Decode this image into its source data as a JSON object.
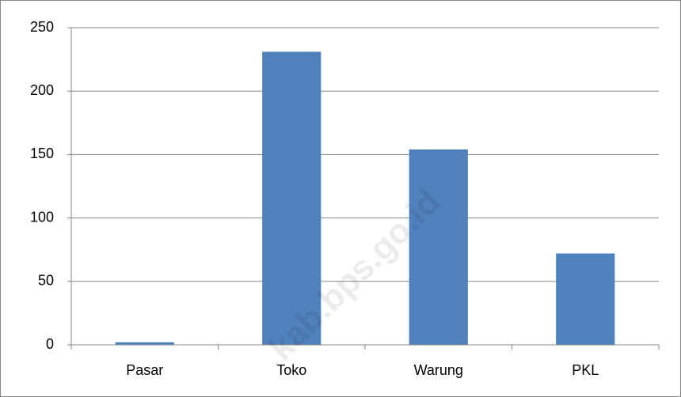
{
  "chart_data": {
    "type": "bar",
    "categories": [
      "Pasar",
      "Toko",
      "Warung",
      "PKL"
    ],
    "values": [
      2,
      231,
      154,
      72
    ],
    "color": "#4f81bd",
    "ylim": [
      0,
      250
    ],
    "yticks": [
      0,
      50,
      100,
      150,
      200,
      250
    ],
    "grid": true,
    "watermark": "kab.bps.go.id"
  }
}
